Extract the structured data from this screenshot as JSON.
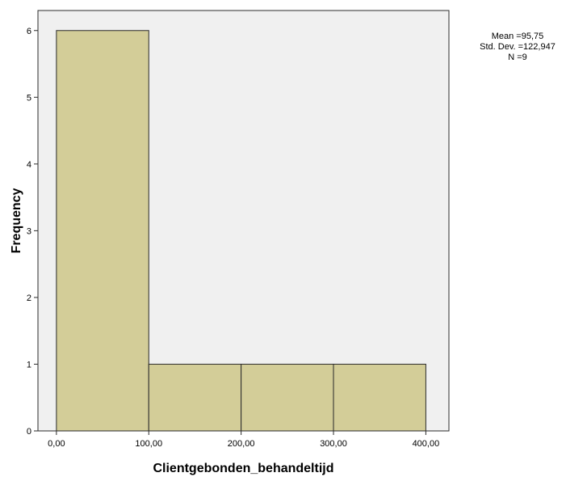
{
  "chart_data": {
    "type": "bar",
    "subtype": "histogram",
    "bins": [
      {
        "start": 0,
        "end": 100,
        "count": 6
      },
      {
        "start": 100,
        "end": 200,
        "count": 1
      },
      {
        "start": 200,
        "end": 300,
        "count": 1
      },
      {
        "start": 300,
        "end": 400,
        "count": 1
      }
    ],
    "x_ticks": [
      "0,00",
      "100,00",
      "200,00",
      "300,00",
      "400,00"
    ],
    "x_tick_values": [
      0,
      100,
      200,
      300,
      400
    ],
    "y_ticks": [
      0,
      1,
      2,
      3,
      4,
      5,
      6
    ],
    "xlabel": "Clientgebonden_behandeltijd",
    "ylabel": "Frequency",
    "xlim": [
      -20,
      425
    ],
    "ylim": [
      0,
      6.3
    ],
    "stats": {
      "mean": "Mean =95,75",
      "std_dev": "Std. Dev. =122,947",
      "n": "N =9"
    },
    "colors": {
      "bar_fill": "#d3cd98",
      "bar_stroke": "#2b2b2b",
      "plot_background": "#f0f0f0"
    },
    "grid": false
  }
}
